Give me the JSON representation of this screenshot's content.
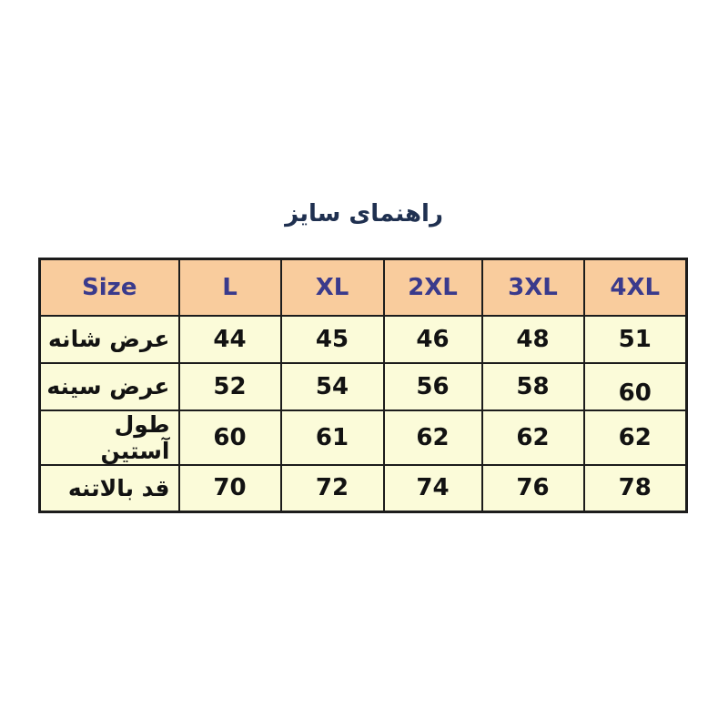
{
  "page": {
    "background": "#ffffff"
  },
  "title": "راهنمای سایز",
  "table": {
    "header": [
      "Size",
      "L",
      "XL",
      "2XL",
      "3XL",
      "4XL"
    ],
    "rows": [
      {
        "label": "عرض شانه",
        "values": [
          "44",
          "45",
          "46",
          "48",
          "51"
        ]
      },
      {
        "label": "عرض سینه",
        "values": [
          "52",
          "54",
          "56",
          "58",
          "60"
        ]
      },
      {
        "label": "طول آستین",
        "values": [
          "60",
          "61",
          "62",
          "62",
          "62"
        ]
      },
      {
        "label": "قد بالاتنه",
        "values": [
          "70",
          "72",
          "74",
          "76",
          "78"
        ]
      }
    ]
  },
  "colors": {
    "title_text": "#1f3050",
    "header_bg": "#f9cc9d",
    "header_text": "#3a3a8c",
    "cell_bg": "#fbfbd9",
    "cell_text": "#121212",
    "border": "#1c1c1c"
  },
  "chart_data": {
    "type": "table",
    "title": "راهنمای سایز",
    "columns": [
      "Size",
      "L",
      "XL",
      "2XL",
      "3XL",
      "4XL"
    ],
    "rows": [
      [
        "عرض شانه",
        44,
        45,
        46,
        48,
        51
      ],
      [
        "عرض سینه",
        52,
        54,
        56,
        58,
        60
      ],
      [
        "طول آستین",
        60,
        61,
        62,
        62,
        62
      ],
      [
        "قد بالاتنه",
        70,
        72,
        74,
        76,
        78
      ]
    ]
  }
}
